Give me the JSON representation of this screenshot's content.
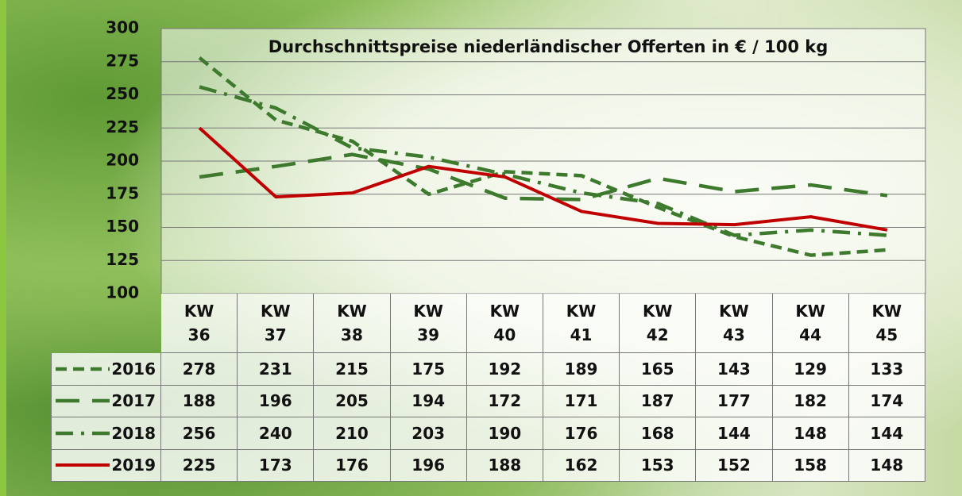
{
  "chart_data": {
    "type": "line",
    "title": "Durchschnittspreise niederländischer Offerten in € / 100 kg",
    "categories": [
      "KW 36",
      "KW 37",
      "KW 38",
      "KW 39",
      "KW 40",
      "KW 41",
      "KW 42",
      "KW 43",
      "KW 44",
      "KW 45"
    ],
    "series": [
      {
        "name": "2016",
        "color": "#3d7a2e",
        "line_style": "dashed",
        "values": [
          278,
          231,
          215,
          175,
          192,
          189,
          165,
          143,
          129,
          133
        ]
      },
      {
        "name": "2017",
        "color": "#3d7a2e",
        "line_style": "long-dashed",
        "values": [
          188,
          196,
          205,
          194,
          172,
          171,
          187,
          177,
          182,
          174
        ]
      },
      {
        "name": "2018",
        "color": "#3d7a2e",
        "line_style": "dash-dot",
        "values": [
          256,
          240,
          210,
          203,
          190,
          176,
          168,
          144,
          148,
          144
        ]
      },
      {
        "name": "2019",
        "color": "#c00000",
        "line_style": "solid",
        "values": [
          225,
          173,
          176,
          196,
          188,
          162,
          153,
          152,
          158,
          148
        ]
      }
    ],
    "ylim": [
      100,
      300
    ],
    "yticks": [
      100,
      125,
      150,
      175,
      200,
      225,
      250,
      275,
      300
    ],
    "grid": true
  }
}
